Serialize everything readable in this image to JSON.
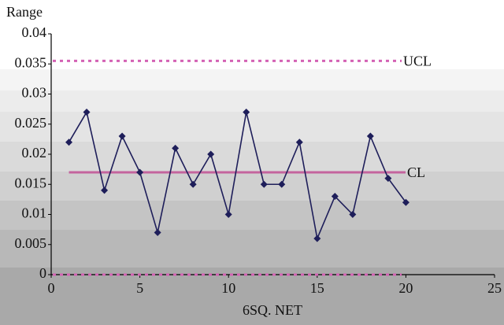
{
  "chart_data": {
    "type": "line",
    "y_label": "Range",
    "x_label": "6SQ. NET",
    "x": [
      1,
      2,
      3,
      4,
      5,
      6,
      7,
      8,
      9,
      10,
      11,
      12,
      13,
      14,
      15,
      16,
      17,
      18,
      19,
      20
    ],
    "series": [
      {
        "color": "#1e1e5a",
        "values": [
          0.022,
          0.027,
          0.014,
          0.023,
          0.017,
          0.007,
          0.021,
          0.015,
          0.02,
          0.01,
          0.027,
          0.015,
          0.015,
          0.022,
          0.006,
          0.013,
          0.01,
          0.023,
          0.016,
          0.012
        ]
      }
    ],
    "reference_lines": [
      {
        "label": "UCL",
        "value": 0.0355,
        "color": "#d462b4",
        "dashed": true
      },
      {
        "label": "CL",
        "value": 0.017,
        "color": "#c4649e",
        "dashed": false
      },
      {
        "value": 0,
        "color": "#d462b4",
        "dashed": true
      }
    ],
    "xlim": [
      0,
      25
    ],
    "xticks": [
      0,
      5,
      10,
      15,
      20,
      25
    ],
    "ylim": [
      0,
      0.04
    ],
    "yticks": [
      0,
      0.005,
      0.01,
      0.015,
      0.02,
      0.025,
      0.03,
      0.035,
      0.04
    ]
  }
}
